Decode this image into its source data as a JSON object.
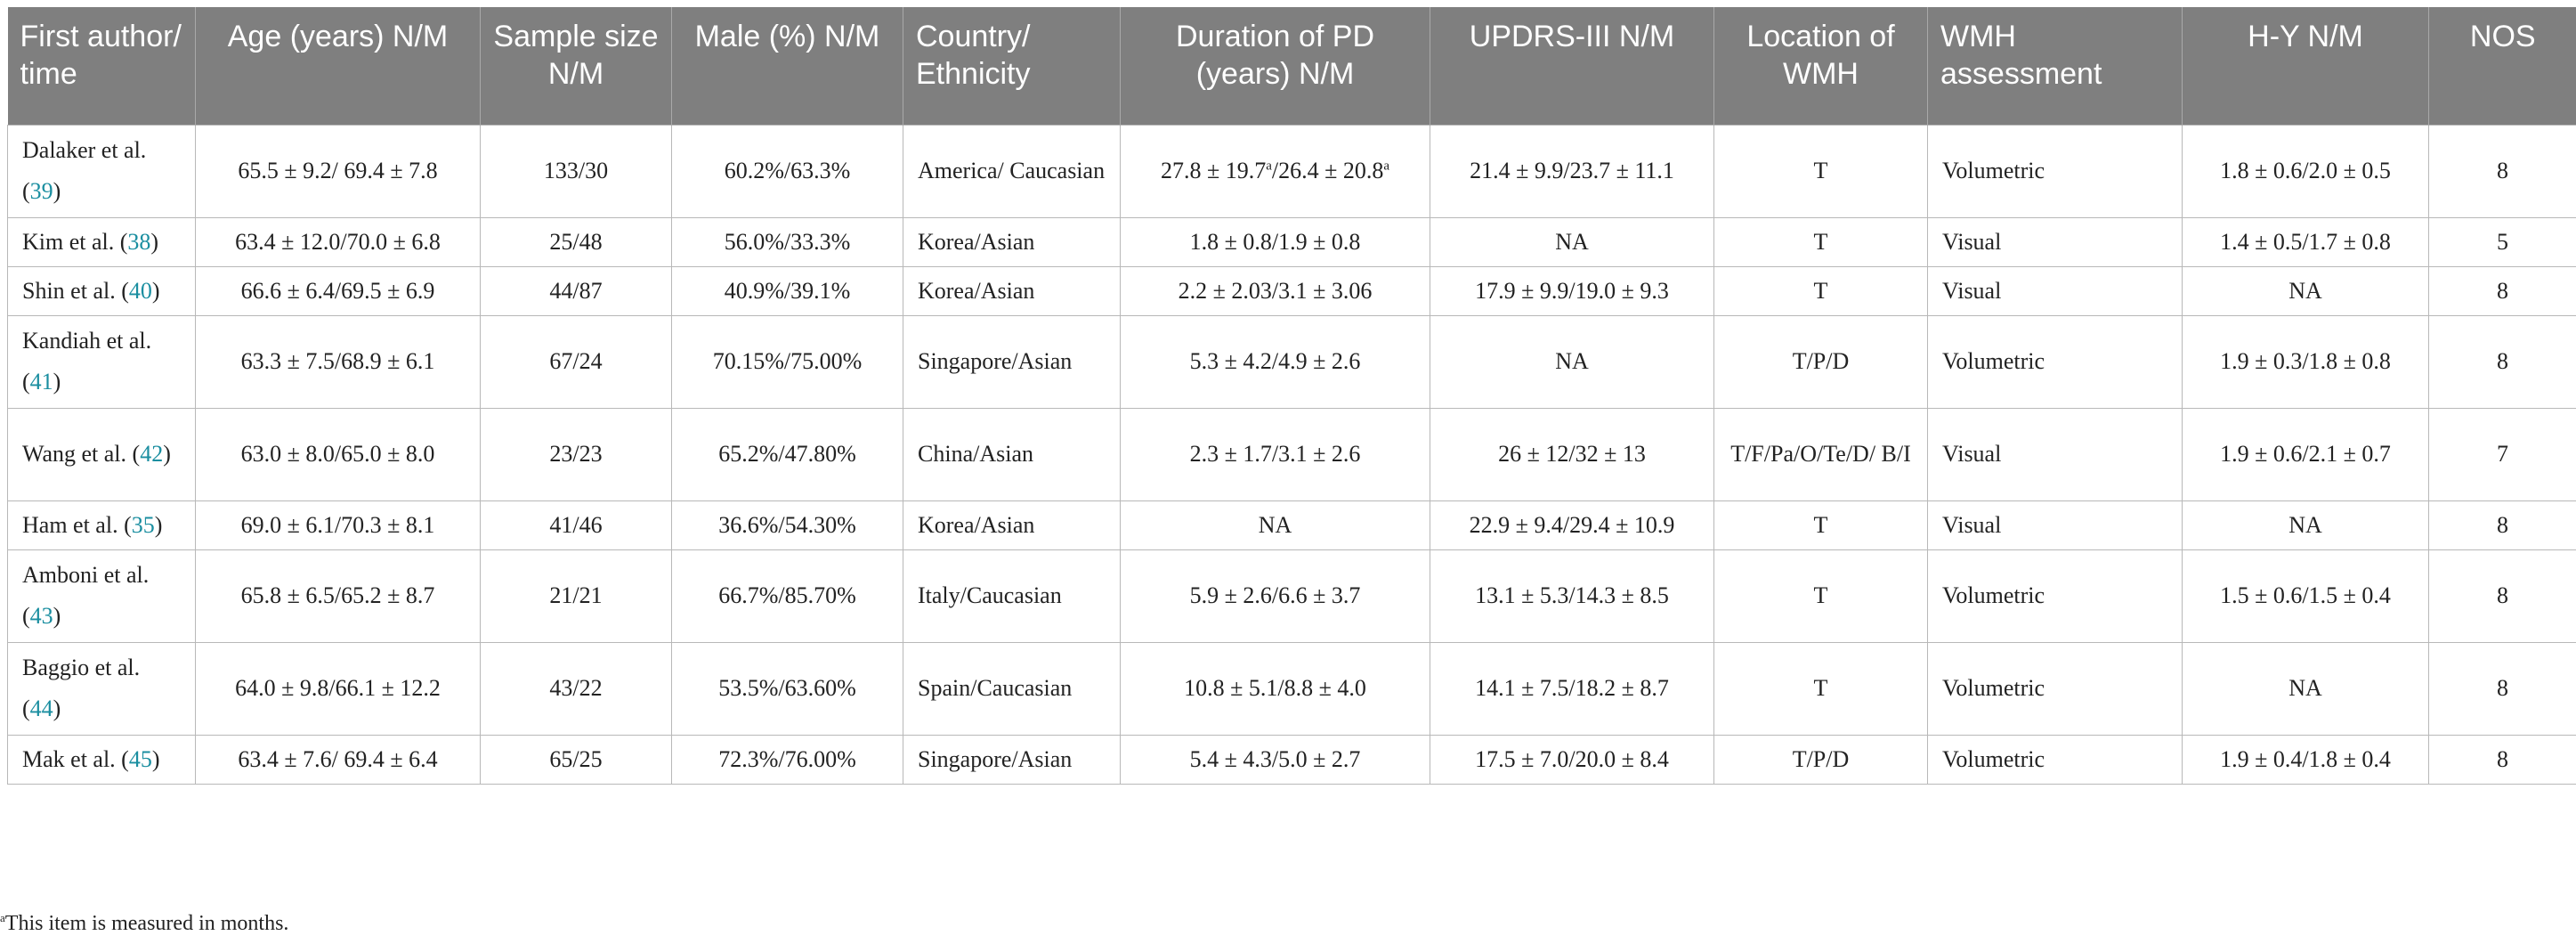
{
  "columns": [
    "First author/ time",
    "Age (years) N/M",
    "Sample size N/M",
    "Male (%) N/M",
    "Country/ Ethnicity",
    "Duration of PD (years) N/M",
    "UPDRS-III N/M",
    "Location of WMH",
    "WMH assessment",
    "H-Y N/M",
    "NOS"
  ],
  "rows": [
    {
      "author": "Dalaker et al. (",
      "ref": "39",
      "age": "65.5 ± 9.2/ 69.4 ± 7.8",
      "sample": "133/30",
      "male": "60.2%/63.3%",
      "country": "America/ Caucasian",
      "dur_a": "27.8 ± 19.7",
      "dur_sup1": "a",
      "dur_b": "/26.4 ± 20.8",
      "dur_sup2": "a",
      "updrs": "21.4 ± 9.9/23.7 ± 11.1",
      "location": "T",
      "assessment": "Volumetric",
      "hy": "1.8 ± 0.6/2.0 ± 0.5",
      "nos": "8"
    },
    {
      "author": "Kim et al. (",
      "ref": "38",
      "age": "63.4 ± 12.0/70.0 ± 6.8",
      "sample": "25/48",
      "male": "56.0%/33.3%",
      "country": "Korea/Asian",
      "dur_a": "1.8 ± 0.8/1.9 ± 0.8",
      "updrs": "NA",
      "location": "T",
      "assessment": "Visual",
      "hy": "1.4 ± 0.5/1.7 ± 0.8",
      "nos": "5"
    },
    {
      "author": "Shin et al. (",
      "ref": "40",
      "age": "66.6 ± 6.4/69.5 ± 6.9",
      "sample": "44/87",
      "male": "40.9%/39.1%",
      "country": "Korea/Asian",
      "dur_a": "2.2 ± 2.03/3.1 ± 3.06",
      "updrs": "17.9 ± 9.9/19.0 ± 9.3",
      "location": "T",
      "assessment": "Visual",
      "hy": "NA",
      "nos": "8"
    },
    {
      "author": "Kandiah et al. (",
      "ref": "41",
      "age": "63.3 ± 7.5/68.9 ± 6.1",
      "sample": "67/24",
      "male": "70.15%/75.00%",
      "country": "Singapore/Asian",
      "dur_a": "5.3 ± 4.2/4.9 ± 2.6",
      "updrs": "NA",
      "location": "T/P/D",
      "assessment": "Volumetric",
      "hy": "1.9 ± 0.3/1.8 ± 0.8",
      "nos": "8"
    },
    {
      "author": "Wang et al. (",
      "ref": "42",
      "age": "63.0 ± 8.0/65.0 ± 8.0",
      "sample": "23/23",
      "male": "65.2%/47.80%",
      "country": "China/Asian",
      "dur_a": "2.3 ± 1.7/3.1 ± 2.6",
      "updrs": "26 ± 12/32 ± 13",
      "location": "T/F/Pa/O/Te/D/ B/I",
      "assessment": "Visual",
      "hy": "1.9 ± 0.6/2.1 ± 0.7",
      "nos": "7"
    },
    {
      "author": "Ham et al. (",
      "ref": "35",
      "age": "69.0 ± 6.1/70.3 ± 8.1",
      "sample": "41/46",
      "male": "36.6%/54.30%",
      "country": "Korea/Asian",
      "dur_a": "NA",
      "updrs": "22.9 ± 9.4/29.4 ± 10.9",
      "location": "T",
      "assessment": "Visual",
      "hy": "NA",
      "nos": "8"
    },
    {
      "author": "Amboni et al. (",
      "ref": "43",
      "age": "65.8 ± 6.5/65.2 ± 8.7",
      "sample": "21/21",
      "male": "66.7%/85.70%",
      "country": "Italy/Caucasian",
      "dur_a": "5.9 ± 2.6/6.6 ± 3.7",
      "updrs": "13.1 ± 5.3/14.3 ± 8.5",
      "location": "T",
      "assessment": "Volumetric",
      "hy": "1.5 ± 0.6/1.5 ± 0.4",
      "nos": "8"
    },
    {
      "author": "Baggio et al. (",
      "ref": "44",
      "age": "64.0 ± 9.8/66.1 ± 12.2",
      "sample": "43/22",
      "male": "53.5%/63.60%",
      "country": "Spain/Caucasian",
      "dur_a": "10.8 ± 5.1/8.8 ± 4.0",
      "updrs": "14.1 ± 7.5/18.2 ± 8.7",
      "location": "T",
      "assessment": "Volumetric",
      "hy": "NA",
      "nos": "8"
    },
    {
      "author": "Mak et al. (",
      "ref": "45",
      "age": "63.4 ± 7.6/ 69.4 ± 6.4",
      "sample": "65/25",
      "male": "72.3%/76.00%",
      "country": "Singapore/Asian",
      "dur_a": "5.4 ± 4.3/5.0 ± 2.7",
      "updrs": "17.5 ± 7.0/20.0 ± 8.4",
      "location": "T/P/D",
      "assessment": "Volumetric",
      "hy": "1.9 ± 0.4/1.8 ± 0.4",
      "nos": "8"
    }
  ],
  "footnote": {
    "marker": "a",
    "text": "This item is measured in months."
  }
}
